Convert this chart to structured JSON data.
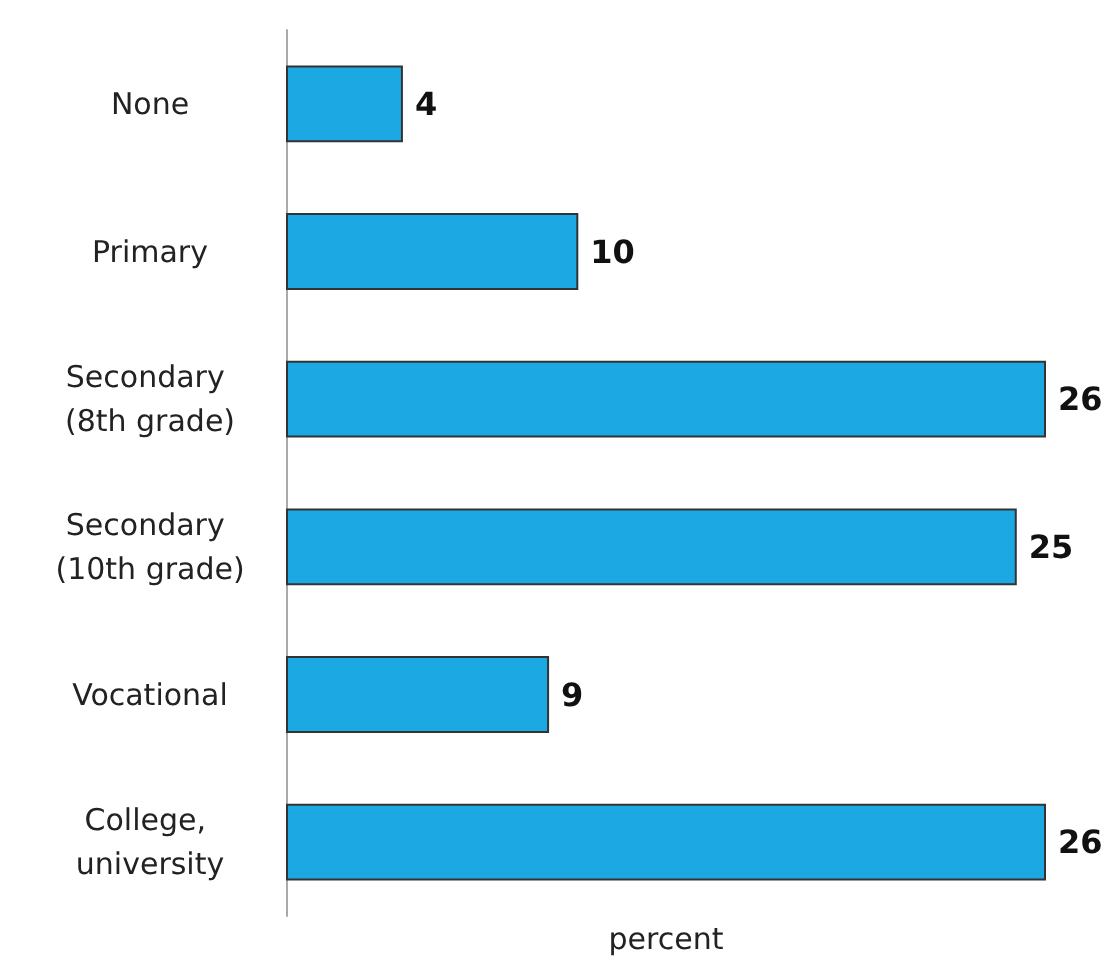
{
  "chart_data": {
    "type": "bar",
    "orientation": "horizontal",
    "xlabel": "percent",
    "categories": [
      "None",
      "Primary",
      "Secondary (8th grade)",
      "Secondary (10th grade)",
      "Vocational",
      "College, university"
    ],
    "values": [
      4,
      10,
      26,
      25,
      9,
      26
    ],
    "color": "#1ca8e3",
    "data_labels": true
  }
}
